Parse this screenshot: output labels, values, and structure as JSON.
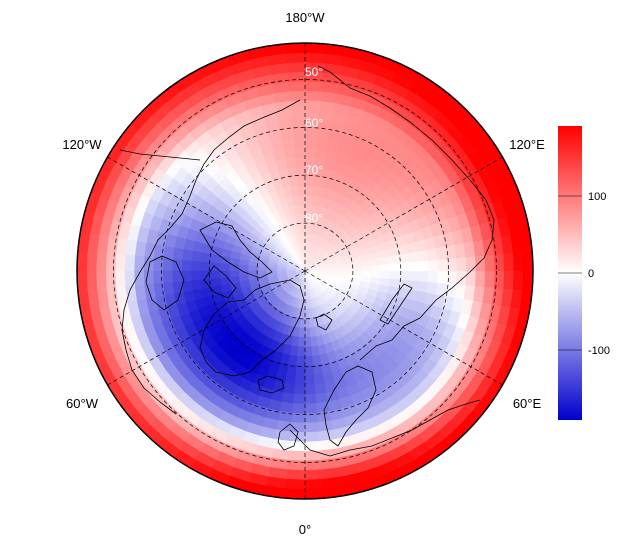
{
  "map": {
    "projection": "north-polar-stereographic",
    "longitude_labels": [
      {
        "id": "180W",
        "text": "180°W"
      },
      {
        "id": "120W",
        "text": "120°W"
      },
      {
        "id": "120E",
        "text": "120°E"
      },
      {
        "id": "60W",
        "text": "60°W"
      },
      {
        "id": "60E",
        "text": "60°E"
      },
      {
        "id": "0",
        "text": "0°"
      }
    ],
    "latitude_labels": [
      {
        "id": "50",
        "text": "50°"
      },
      {
        "id": "60",
        "text": "60°"
      },
      {
        "id": "70",
        "text": "70°"
      },
      {
        "id": "80",
        "text": "80°"
      }
    ],
    "field_description": "anomaly field: positive (red) over North Pacific/Aleutians, Siberia and Europe; negative (blue) over Canada, Greenland, North Atlantic and Barents/Kara region",
    "colors": {
      "positive": "#ff0000",
      "neutral": "#ffffff",
      "negative": "#0000cc",
      "coastline": "#000000",
      "gridline": "#000000"
    }
  },
  "colorbar": {
    "ticks": [
      "100",
      "0",
      "-100"
    ],
    "range": [
      -190,
      190
    ],
    "colors": [
      "#0000cc",
      "#ffffff",
      "#ff0000"
    ]
  }
}
